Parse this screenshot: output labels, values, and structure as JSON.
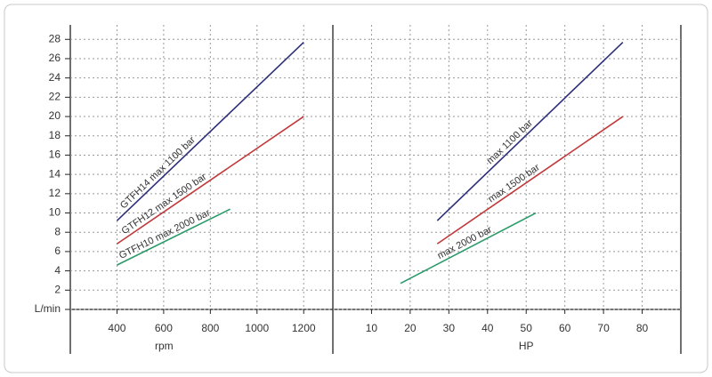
{
  "chart_data": [
    {
      "type": "line",
      "xlabel": "rpm",
      "xlim": [
        200,
        1325
      ],
      "xticks": [
        400,
        600,
        800,
        1000,
        1200
      ],
      "ylim": [
        0,
        29.5
      ],
      "yticks": [
        {
          "value": 0,
          "label": "L/min"
        },
        2,
        4,
        6,
        8,
        10,
        12,
        14,
        16,
        18,
        20,
        22,
        24,
        26,
        28
      ],
      "grid": true,
      "series": [
        {
          "name": "GTFH14 max 1100 bar",
          "color": "#2e2f7a",
          "x": [
            400,
            1200
          ],
          "values": [
            9.2,
            27.7
          ]
        },
        {
          "name": "GTFH12 max 1500 bar",
          "color": "#c0393b",
          "x": [
            400,
            1200
          ],
          "values": [
            6.8,
            20
          ]
        },
        {
          "name": "GTFH10 max 2000 bar",
          "color": "#2a9a6a",
          "x": [
            400,
            885
          ],
          "values": [
            4.6,
            10.4
          ]
        }
      ]
    },
    {
      "type": "line",
      "xlabel": "HP",
      "xlim": [
        0,
        90
      ],
      "xticks": [
        10,
        20,
        30,
        40,
        50,
        60,
        70,
        80
      ],
      "ylim": [
        0,
        29.5
      ],
      "grid": true,
      "series": [
        {
          "name": "max 1100 bar",
          "color": "#2e2f7a",
          "x": [
            27,
            75
          ],
          "values": [
            9.2,
            27.7
          ]
        },
        {
          "name": "max 1500 bar",
          "color": "#c0393b",
          "x": [
            27,
            75
          ],
          "values": [
            6.8,
            20
          ]
        },
        {
          "name": "max 2000 bar",
          "color": "#2a9a6a",
          "x": [
            17.5,
            52.5
          ],
          "values": [
            2.7,
            10
          ]
        }
      ]
    }
  ]
}
